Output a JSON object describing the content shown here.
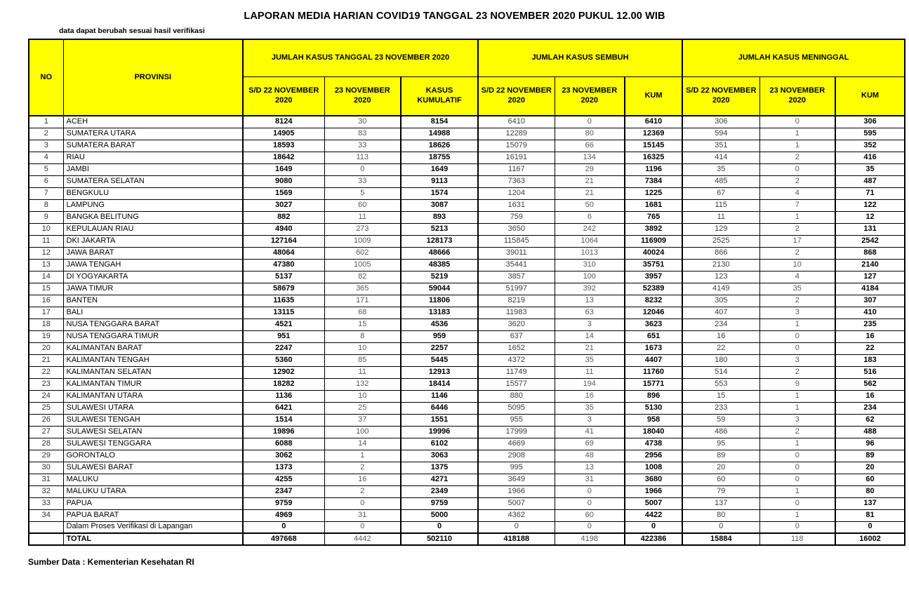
{
  "title": "LAPORAN MEDIA HARIAN COVID19 TANGGAL 23 NOVEMBER 2020 PUKUL 12.00 WIB",
  "note": "data dapat berubah sesuai hasil verifikasi",
  "footer": "Sumber Data : Kementerian Kesehatan RI",
  "colors": {
    "header_bg": "#FFFF00",
    "border": "#000000",
    "text": "#000000",
    "muted_text": "#595959"
  },
  "table": {
    "header": {
      "no": "NO",
      "provinsi": "PROVINSI",
      "groups": [
        "JUMLAH KASUS TANGGAL 23 NOVEMBER 2020",
        "JUMLAH KASUS SEMBUH",
        "JUMLAH KASUS MENINGGAL"
      ],
      "sub": [
        "S/D 22 NOVEMBER 2020",
        "23 NOVEMBER 2020",
        "KASUS KUMULATIF",
        "S/D 22 NOVEMBER 2020",
        "23 NOVEMBER 2020",
        "KUM",
        "S/D 22 NOVEMBER 2020",
        "23 NOVEMBER 2020",
        "KUM"
      ]
    },
    "rows": [
      [
        "1",
        "ACEH",
        8124,
        30,
        8154,
        6410,
        0,
        6410,
        306,
        0,
        306
      ],
      [
        "2",
        "SUMATERA UTARA",
        14905,
        83,
        14988,
        12289,
        80,
        12369,
        594,
        1,
        595
      ],
      [
        "3",
        "SUMATERA BARAT",
        18593,
        33,
        18626,
        15079,
        66,
        15145,
        351,
        1,
        352
      ],
      [
        "4",
        "RIAU",
        18642,
        113,
        18755,
        16191,
        134,
        16325,
        414,
        2,
        416
      ],
      [
        "5",
        "JAMBI",
        1649,
        0,
        1649,
        1167,
        29,
        1196,
        35,
        0,
        35
      ],
      [
        "6",
        "SUMATERA SELATAN",
        9080,
        33,
        9113,
        7363,
        21,
        7384,
        485,
        2,
        487
      ],
      [
        "7",
        "BENGKULU",
        1569,
        5,
        1574,
        1204,
        21,
        1225,
        67,
        4,
        71
      ],
      [
        "8",
        "LAMPUNG",
        3027,
        60,
        3087,
        1631,
        50,
        1681,
        115,
        7,
        122
      ],
      [
        "9",
        "BANGKA BELITUNG",
        882,
        11,
        893,
        759,
        6,
        765,
        11,
        1,
        12
      ],
      [
        "10",
        "KEPULAUAN RIAU",
        4940,
        273,
        5213,
        3650,
        242,
        3892,
        129,
        2,
        131
      ],
      [
        "11",
        "DKI JAKARTA",
        127164,
        1009,
        128173,
        115845,
        1064,
        116909,
        2525,
        17,
        2542
      ],
      [
        "12",
        "JAWA BARAT",
        48064,
        602,
        48666,
        39011,
        1013,
        40024,
        866,
        2,
        868
      ],
      [
        "13",
        "JAWA TENGAH",
        47380,
        1005,
        48385,
        35441,
        310,
        35751,
        2130,
        10,
        2140
      ],
      [
        "14",
        "DI YOGYAKARTA",
        5137,
        82,
        5219,
        3857,
        100,
        3957,
        123,
        4,
        127
      ],
      [
        "15",
        "JAWA TIMUR",
        58679,
        365,
        59044,
        51997,
        392,
        52389,
        4149,
        35,
        4184
      ],
      [
        "16",
        "BANTEN",
        11635,
        171,
        11806,
        8219,
        13,
        8232,
        305,
        2,
        307
      ],
      [
        "17",
        "BALI",
        13115,
        68,
        13183,
        11983,
        63,
        12046,
        407,
        3,
        410
      ],
      [
        "18",
        "NUSA TENGGARA BARAT",
        4521,
        15,
        4536,
        3620,
        3,
        3623,
        234,
        1,
        235
      ],
      [
        "19",
        "NUSA TENGGARA TIMUR",
        951,
        8,
        959,
        637,
        14,
        651,
        16,
        0,
        16
      ],
      [
        "20",
        "KALIMANTAN BARAT",
        2247,
        10,
        2257,
        1652,
        21,
        1673,
        22,
        0,
        22
      ],
      [
        "21",
        "KALIMANTAN TENGAH",
        5360,
        85,
        5445,
        4372,
        35,
        4407,
        180,
        3,
        183
      ],
      [
        "22",
        "KALIMANTAN SELATAN",
        12902,
        11,
        12913,
        11749,
        11,
        11760,
        514,
        2,
        516
      ],
      [
        "23",
        "KALIMANTAN TIMUR",
        18282,
        132,
        18414,
        15577,
        194,
        15771,
        553,
        9,
        562
      ],
      [
        "24",
        "KALIMANTAN UTARA",
        1136,
        10,
        1146,
        880,
        16,
        896,
        15,
        1,
        16
      ],
      [
        "25",
        "SULAWESI UTARA",
        6421,
        25,
        6446,
        5095,
        35,
        5130,
        233,
        1,
        234
      ],
      [
        "26",
        "SULAWESI TENGAH",
        1514,
        37,
        1551,
        955,
        3,
        958,
        59,
        3,
        62
      ],
      [
        "27",
        "SULAWESI SELATAN",
        19896,
        100,
        19996,
        17999,
        41,
        18040,
        486,
        2,
        488
      ],
      [
        "28",
        "SULAWESI TENGGARA",
        6088,
        14,
        6102,
        4669,
        69,
        4738,
        95,
        1,
        96
      ],
      [
        "29",
        "GORONTALO",
        3062,
        1,
        3063,
        2908,
        48,
        2956,
        89,
        0,
        89
      ],
      [
        "30",
        "SULAWESI BARAT",
        1373,
        2,
        1375,
        995,
        13,
        1008,
        20,
        0,
        20
      ],
      [
        "31",
        "MALUKU",
        4255,
        16,
        4271,
        3649,
        31,
        3680,
        60,
        0,
        60
      ],
      [
        "32",
        "MALUKU UTARA",
        2347,
        2,
        2349,
        1966,
        0,
        1966,
        79,
        1,
        80
      ],
      [
        "33",
        "PAPUA",
        9759,
        0,
        9759,
        5007,
        0,
        5007,
        137,
        0,
        137
      ],
      [
        "34",
        "PAPUA BARAT",
        4969,
        31,
        5000,
        4362,
        60,
        4422,
        80,
        1,
        81
      ]
    ],
    "verification_row": [
      "",
      "Dalam Proses Verifikasi di Lapangan",
      0,
      0,
      0,
      0,
      0,
      0,
      0,
      0,
      0
    ],
    "total_row": [
      "",
      "TOTAL",
      497668,
      4442,
      502110,
      418188,
      4198,
      422386,
      15884,
      118,
      16002
    ]
  }
}
